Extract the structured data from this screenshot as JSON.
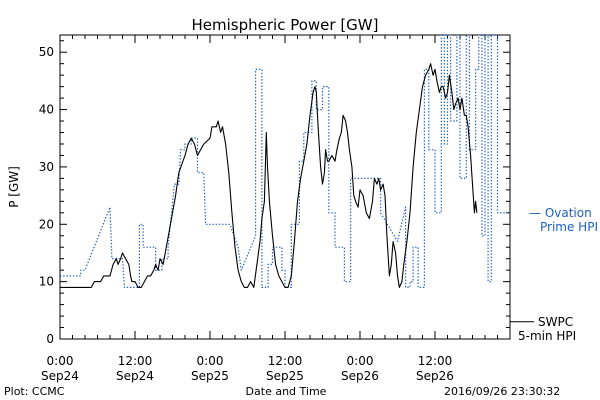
{
  "chart_data": {
    "type": "line",
    "title": "Hemispheric Power [GW]",
    "ylabel": "P [GW]",
    "xlabel": "Date and Time",
    "credit": "Plot: CCMC",
    "timestamp": "2016/09/26 23:30:32",
    "ylim": [
      0,
      53
    ],
    "xlim_hours": [
      0,
      72
    ],
    "y_ticks": [
      "0",
      "10",
      "20",
      "30",
      "40",
      "50"
    ],
    "x_ticks": [
      {
        "time": "0:00",
        "date": "Sep24"
      },
      {
        "time": "12:00",
        "date": "Sep24"
      },
      {
        "time": "0:00",
        "date": "Sep25"
      },
      {
        "time": "12:00",
        "date": "Sep25"
      },
      {
        "time": "0:00",
        "date": "Sep26"
      },
      {
        "time": "12:00",
        "date": "Sep26"
      }
    ],
    "series": [
      {
        "name_lines": [
          "— Ovation",
          "Prime HPI"
        ],
        "style": "dotted",
        "color": "#1f5fbf",
        "step": true,
        "points": [
          [
            0,
            11
          ],
          [
            3.3,
            11
          ],
          [
            3.3,
            12
          ],
          [
            4,
            12
          ],
          [
            8,
            23
          ],
          [
            8.3,
            14
          ],
          [
            10,
            14
          ],
          [
            10.3,
            9
          ],
          [
            12.7,
            9
          ],
          [
            12.7,
            20
          ],
          [
            13.3,
            20
          ],
          [
            13.3,
            16
          ],
          [
            15.3,
            16
          ],
          [
            15.3,
            12
          ],
          [
            16.3,
            12
          ],
          [
            16.3,
            14
          ],
          [
            17.3,
            14
          ],
          [
            17.3,
            16
          ],
          [
            18.3,
            27
          ],
          [
            19,
            27
          ],
          [
            19.3,
            33
          ],
          [
            20,
            33
          ],
          [
            20,
            34
          ],
          [
            21,
            34
          ],
          [
            21,
            35
          ],
          [
            22,
            35
          ],
          [
            22,
            29
          ],
          [
            23,
            29
          ],
          [
            23.3,
            20
          ],
          [
            27.2,
            20
          ],
          [
            28.5,
            16
          ],
          [
            29,
            12
          ],
          [
            31.3,
            18
          ],
          [
            31.3,
            47
          ],
          [
            32.3,
            47
          ],
          [
            32.3,
            9
          ],
          [
            33.3,
            9
          ],
          [
            33.3,
            13
          ],
          [
            34,
            13
          ],
          [
            34,
            16
          ],
          [
            35.5,
            16
          ],
          [
            35.5,
            12
          ],
          [
            36,
            12
          ],
          [
            36,
            9
          ],
          [
            37,
            9
          ],
          [
            37,
            20
          ],
          [
            38.3,
            20
          ],
          [
            38.3,
            31
          ],
          [
            39,
            31
          ],
          [
            39,
            36
          ],
          [
            40.3,
            36
          ],
          [
            40.3,
            45
          ],
          [
            41,
            45
          ],
          [
            41,
            40
          ],
          [
            42,
            40
          ],
          [
            42,
            44
          ],
          [
            43,
            44
          ],
          [
            43,
            22
          ],
          [
            44,
            22
          ],
          [
            44,
            16
          ],
          [
            45.5,
            16
          ],
          [
            45.5,
            10
          ],
          [
            46.5,
            10
          ],
          [
            46.5,
            28
          ],
          [
            51.3,
            28
          ],
          [
            51.3,
            22
          ],
          [
            54,
            17
          ],
          [
            55.3,
            23
          ],
          [
            55.3,
            9
          ],
          [
            56,
            9
          ],
          [
            56,
            10
          ],
          [
            56.5,
            10
          ],
          [
            56.5,
            16
          ],
          [
            57.3,
            16
          ],
          [
            57.3,
            9
          ],
          [
            58.3,
            9
          ],
          [
            58.3,
            47
          ],
          [
            59,
            47
          ],
          [
            59,
            33
          ],
          [
            60,
            33
          ],
          [
            60,
            22
          ],
          [
            61,
            22
          ],
          [
            61,
            53
          ],
          [
            61.5,
            53
          ],
          [
            61.5,
            34
          ],
          [
            62,
            34
          ],
          [
            62,
            53
          ],
          [
            62.5,
            53
          ],
          [
            62.5,
            38
          ],
          [
            63.5,
            38
          ],
          [
            63.5,
            53
          ],
          [
            64,
            53
          ],
          [
            64,
            28
          ],
          [
            65,
            28
          ],
          [
            65,
            53
          ],
          [
            65.5,
            53
          ],
          [
            65.5,
            33
          ],
          [
            66.5,
            33
          ],
          [
            66.5,
            47
          ],
          [
            67,
            47
          ],
          [
            67,
            53
          ],
          [
            67.5,
            53
          ],
          [
            67.5,
            18
          ],
          [
            68,
            18
          ],
          [
            68,
            53
          ],
          [
            68.5,
            53
          ],
          [
            68.5,
            10
          ],
          [
            69,
            10
          ],
          [
            69,
            53
          ],
          [
            70,
            53
          ],
          [
            70,
            22
          ],
          [
            72,
            22
          ]
        ]
      },
      {
        "name_lines": [
          "SWPC",
          "5-min HPI"
        ],
        "style": "solid",
        "color": "#000000",
        "step": false,
        "points": [
          [
            0,
            9
          ],
          [
            5,
            9
          ],
          [
            5.5,
            10
          ],
          [
            6.5,
            10
          ],
          [
            7,
            11
          ],
          [
            8,
            11
          ],
          [
            8.5,
            13
          ],
          [
            9,
            14
          ],
          [
            9.3,
            13
          ],
          [
            9.7,
            14
          ],
          [
            10,
            15
          ],
          [
            10.5,
            14
          ],
          [
            11,
            13
          ],
          [
            11.3,
            11
          ],
          [
            11.5,
            10
          ],
          [
            12,
            10
          ],
          [
            12.5,
            9
          ],
          [
            13,
            9
          ],
          [
            13.5,
            10
          ],
          [
            14,
            11
          ],
          [
            14.5,
            11
          ],
          [
            15,
            12
          ],
          [
            15.3,
            13
          ],
          [
            15.7,
            12
          ],
          [
            16,
            14
          ],
          [
            16.5,
            13
          ],
          [
            17,
            16
          ],
          [
            18,
            22
          ],
          [
            18.5,
            25
          ],
          [
            19,
            29
          ],
          [
            20,
            32
          ],
          [
            20.5,
            34
          ],
          [
            21,
            35
          ],
          [
            21.5,
            34
          ],
          [
            22,
            32
          ],
          [
            22.5,
            33
          ],
          [
            23,
            34
          ],
          [
            24,
            35
          ],
          [
            24.3,
            37
          ],
          [
            25,
            37
          ],
          [
            25.3,
            38
          ],
          [
            25.7,
            36
          ],
          [
            26,
            37
          ],
          [
            26.5,
            34
          ],
          [
            27,
            29
          ],
          [
            27.5,
            22
          ],
          [
            28,
            16
          ],
          [
            28.5,
            12
          ],
          [
            29,
            10
          ],
          [
            29.5,
            9
          ],
          [
            30,
            9
          ],
          [
            30.5,
            10
          ],
          [
            31,
            9
          ],
          [
            31.5,
            13
          ],
          [
            32,
            17
          ],
          [
            32.3,
            21
          ],
          [
            32.7,
            24
          ],
          [
            33,
            36
          ],
          [
            33.2,
            30
          ],
          [
            33.5,
            24
          ],
          [
            34,
            18
          ],
          [
            34.5,
            13
          ],
          [
            35,
            11
          ],
          [
            35.5,
            10
          ],
          [
            36,
            9
          ],
          [
            36.5,
            9
          ],
          [
            37,
            11
          ],
          [
            37.5,
            17
          ],
          [
            38,
            24
          ],
          [
            38.5,
            28
          ],
          [
            39,
            31
          ],
          [
            39.5,
            34
          ],
          [
            40,
            39
          ],
          [
            40.5,
            43
          ],
          [
            40.8,
            44
          ],
          [
            41,
            43
          ],
          [
            41.3,
            37
          ],
          [
            41.7,
            30
          ],
          [
            42,
            27
          ],
          [
            42.3,
            29
          ],
          [
            42.5,
            33
          ],
          [
            42.8,
            31
          ],
          [
            43,
            31
          ],
          [
            43.5,
            32
          ],
          [
            44,
            31
          ],
          [
            44.3,
            33
          ],
          [
            44.7,
            35
          ],
          [
            45,
            36
          ],
          [
            45.3,
            39
          ],
          [
            45.7,
            38
          ],
          [
            46,
            36
          ],
          [
            46.3,
            33
          ],
          [
            46.7,
            30
          ],
          [
            47,
            25
          ],
          [
            47.3,
            24
          ],
          [
            47.7,
            23
          ],
          [
            48,
            26
          ],
          [
            48.5,
            25
          ],
          [
            49,
            22
          ],
          [
            49.5,
            21
          ],
          [
            50,
            24
          ],
          [
            50.3,
            28
          ],
          [
            50.7,
            27
          ],
          [
            51,
            28
          ],
          [
            51.3,
            26
          ],
          [
            51.7,
            27
          ],
          [
            52,
            25
          ],
          [
            52.3,
            18
          ],
          [
            52.7,
            11
          ],
          [
            53,
            13
          ],
          [
            53.3,
            17
          ],
          [
            53.7,
            15
          ],
          [
            54,
            11
          ],
          [
            54.3,
            9
          ],
          [
            54.7,
            10
          ],
          [
            55,
            13
          ],
          [
            55.5,
            17
          ],
          [
            56,
            22
          ],
          [
            56.5,
            30
          ],
          [
            57,
            36
          ],
          [
            57.5,
            40
          ],
          [
            58,
            44
          ],
          [
            58.5,
            46
          ],
          [
            59,
            47
          ],
          [
            59.3,
            48
          ],
          [
            59.7,
            46
          ],
          [
            60,
            47
          ],
          [
            60.3,
            45
          ],
          [
            60.7,
            43
          ],
          [
            61,
            44
          ],
          [
            61.3,
            44
          ],
          [
            61.7,
            42
          ],
          [
            62,
            43
          ],
          [
            62.3,
            46
          ],
          [
            62.7,
            43
          ],
          [
            63,
            40
          ],
          [
            63.3,
            41
          ],
          [
            63.7,
            42
          ],
          [
            64,
            40
          ],
          [
            64.3,
            42
          ],
          [
            64.7,
            39
          ],
          [
            65,
            39
          ],
          [
            65.3,
            37
          ],
          [
            65.7,
            32
          ],
          [
            66,
            27
          ],
          [
            66.3,
            22
          ],
          [
            66.5,
            24
          ],
          [
            66.7,
            22
          ]
        ]
      }
    ]
  }
}
